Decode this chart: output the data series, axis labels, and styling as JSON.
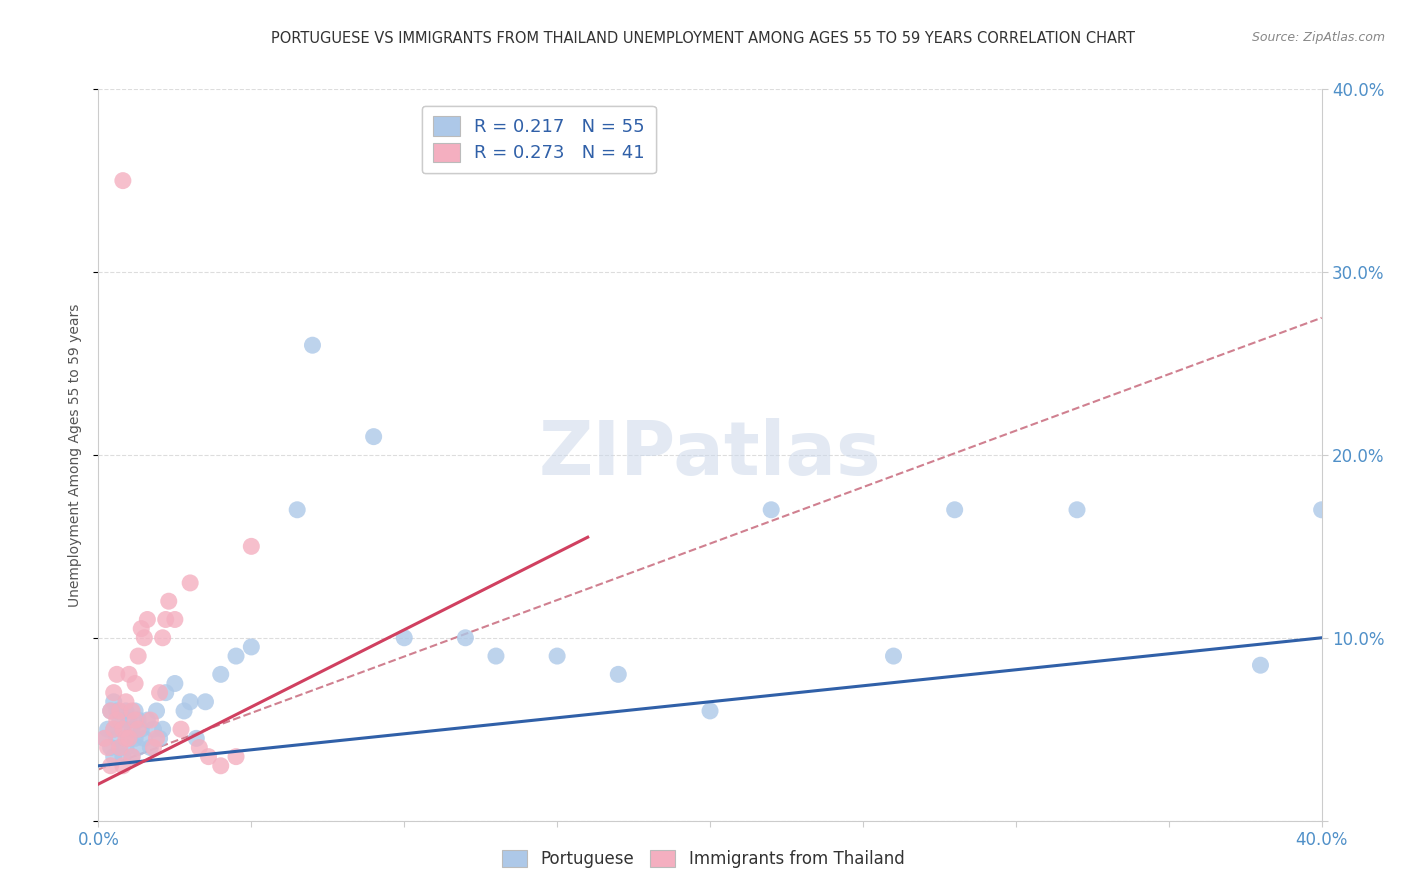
{
  "title": "PORTUGUESE VS IMMIGRANTS FROM THAILAND UNEMPLOYMENT AMONG AGES 55 TO 59 YEARS CORRELATION CHART",
  "source": "Source: ZipAtlas.com",
  "ylabel": "Unemployment Among Ages 55 to 59 years",
  "xlim": [
    0.0,
    0.4
  ],
  "ylim": [
    0.0,
    0.4
  ],
  "xticks": [
    0.0,
    0.05,
    0.1,
    0.15,
    0.2,
    0.25,
    0.3,
    0.35,
    0.4
  ],
  "yticks": [
    0.0,
    0.1,
    0.2,
    0.3,
    0.4
  ],
  "blue_R": 0.217,
  "blue_N": 55,
  "pink_R": 0.273,
  "pink_N": 41,
  "blue_color": "#adc8e8",
  "pink_color": "#f4afc0",
  "blue_line_color": "#3060a8",
  "pink_line_color": "#d04060",
  "dash_color": "#d08090",
  "title_color": "#333333",
  "source_color": "#888888",
  "tick_color": "#5090c8",
  "ylabel_color": "#555555",
  "grid_color": "#dddddd",
  "blue_x": [
    0.002,
    0.003,
    0.004,
    0.004,
    0.005,
    0.005,
    0.005,
    0.006,
    0.006,
    0.007,
    0.007,
    0.008,
    0.008,
    0.009,
    0.009,
    0.01,
    0.01,
    0.011,
    0.011,
    0.012,
    0.012,
    0.013,
    0.013,
    0.014,
    0.015,
    0.016,
    0.017,
    0.018,
    0.019,
    0.02,
    0.021,
    0.022,
    0.025,
    0.028,
    0.03,
    0.032,
    0.035,
    0.04,
    0.045,
    0.05,
    0.065,
    0.07,
    0.09,
    0.1,
    0.12,
    0.13,
    0.15,
    0.17,
    0.2,
    0.22,
    0.26,
    0.28,
    0.32,
    0.38,
    0.4
  ],
  "blue_y": [
    0.045,
    0.05,
    0.04,
    0.06,
    0.035,
    0.05,
    0.065,
    0.045,
    0.06,
    0.04,
    0.055,
    0.035,
    0.05,
    0.06,
    0.04,
    0.045,
    0.055,
    0.05,
    0.035,
    0.045,
    0.06,
    0.04,
    0.055,
    0.05,
    0.045,
    0.055,
    0.04,
    0.05,
    0.06,
    0.045,
    0.05,
    0.07,
    0.075,
    0.06,
    0.065,
    0.045,
    0.065,
    0.08,
    0.09,
    0.095,
    0.17,
    0.26,
    0.21,
    0.1,
    0.1,
    0.09,
    0.09,
    0.08,
    0.06,
    0.17,
    0.09,
    0.17,
    0.17,
    0.085,
    0.17
  ],
  "pink_x": [
    0.002,
    0.003,
    0.004,
    0.004,
    0.005,
    0.005,
    0.006,
    0.006,
    0.007,
    0.007,
    0.008,
    0.008,
    0.009,
    0.009,
    0.01,
    0.01,
    0.011,
    0.011,
    0.012,
    0.012,
    0.013,
    0.013,
    0.014,
    0.015,
    0.016,
    0.017,
    0.018,
    0.019,
    0.02,
    0.021,
    0.022,
    0.023,
    0.025,
    0.027,
    0.03,
    0.033,
    0.036,
    0.04,
    0.045,
    0.05,
    0.008
  ],
  "pink_y": [
    0.045,
    0.04,
    0.06,
    0.03,
    0.05,
    0.07,
    0.055,
    0.08,
    0.04,
    0.06,
    0.05,
    0.03,
    0.045,
    0.065,
    0.08,
    0.045,
    0.06,
    0.035,
    0.055,
    0.075,
    0.05,
    0.09,
    0.105,
    0.1,
    0.11,
    0.055,
    0.04,
    0.045,
    0.07,
    0.1,
    0.11,
    0.12,
    0.11,
    0.05,
    0.13,
    0.04,
    0.035,
    0.03,
    0.035,
    0.15,
    0.35
  ],
  "blue_trend_x0": 0.0,
  "blue_trend_y0": 0.03,
  "blue_trend_x1": 0.4,
  "blue_trend_y1": 0.1,
  "pink_trend_x0": 0.0,
  "pink_trend_y0": 0.02,
  "pink_trend_x1": 0.16,
  "pink_trend_y1": 0.155,
  "dash_trend_x0": 0.0,
  "dash_trend_y0": 0.028,
  "dash_trend_x1": 0.4,
  "dash_trend_y1": 0.275
}
